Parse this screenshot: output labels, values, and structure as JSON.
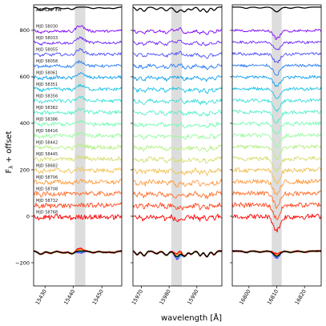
{
  "chart_data": {
    "type": "line",
    "xlabel": "wavelength [Å]",
    "ylabel": "F_λ + offset",
    "ylabel_main": "F",
    "ylabel_sub": "λ",
    "ylabel_rest": " + offset",
    "ylim": [
      -300,
      910
    ],
    "yticks": [
      "800",
      "600",
      "400",
      "200",
      "0",
      "−200"
    ],
    "yticks_values": [
      800,
      600,
      400,
      200,
      0,
      -200
    ],
    "fit_label": "ASPCAP Fit",
    "fit_offset": 900,
    "panels": [
      {
        "xlim": [
          15426,
          15457
        ],
        "xticks": [
          "15430",
          "15440",
          "15450"
        ],
        "xtick_values": [
          15430,
          15440,
          15450
        ],
        "shade": [
          15440.5,
          15444.2
        ]
      },
      {
        "xlim": [
          15967,
          15999
        ],
        "xticks": [
          "15970",
          "15980",
          "15990"
        ],
        "xtick_values": [
          15970,
          15980,
          15990
        ],
        "shade": [
          15980.8,
          15984.6
        ]
      },
      {
        "xlim": [
          16794,
          16826
        ],
        "xticks": [
          "16800",
          "16810",
          "16820"
        ],
        "xtick_values": [
          16800,
          16810,
          16820
        ],
        "shade": [
          16808.2,
          16811.8
        ]
      }
    ],
    "series": [
      {
        "name": "MJD 58030",
        "offset": 800,
        "color": "#7f00ff"
      },
      {
        "name": "MJD 58033",
        "offset": 750,
        "color": "#6a23ff"
      },
      {
        "name": "MJD 58055",
        "offset": 700,
        "color": "#4c50fc"
      },
      {
        "name": "MJD 58058",
        "offset": 650,
        "color": "#2c7ef7"
      },
      {
        "name": "MJD 58061",
        "offset": 600,
        "color": "#10a2f0"
      },
      {
        "name": "MJD 58351",
        "offset": 550,
        "color": "#1cc5e6"
      },
      {
        "name": "MJD 58356",
        "offset": 500,
        "color": "#3ae0d9"
      },
      {
        "name": "MJD 58382",
        "offset": 450,
        "color": "#56f0c9"
      },
      {
        "name": "MJD 58386",
        "offset": 400,
        "color": "#78fcb4"
      },
      {
        "name": "MJD 58416",
        "offset": 350,
        "color": "#9afca0"
      },
      {
        "name": "MJD 58442",
        "offset": 300,
        "color": "#b8f086"
      },
      {
        "name": "MJD 58445",
        "offset": 250,
        "color": "#d6dc6e"
      },
      {
        "name": "MJD 58682",
        "offset": 200,
        "color": "#f2c155"
      },
      {
        "name": "MJD 58706",
        "offset": 150,
        "color": "#ff9c42"
      },
      {
        "name": "MJD 58708",
        "offset": 100,
        "color": "#ff7230"
      },
      {
        "name": "MJD 58732",
        "offset": 50,
        "color": "#ff461f"
      },
      {
        "name": "MJD 58768",
        "offset": 0,
        "color": "#ff0000"
      }
    ],
    "residual_offset": -150
  }
}
